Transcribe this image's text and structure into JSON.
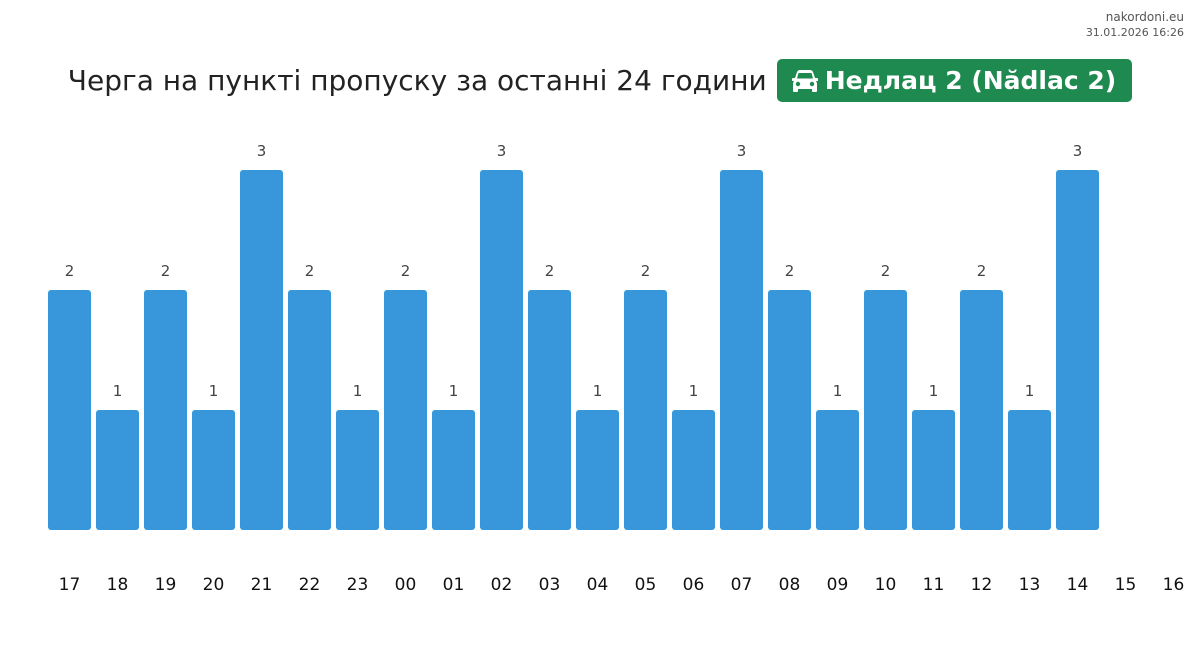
{
  "site": "nakordoni.eu",
  "timestamp": "31.01.2026 16:26",
  "header": {
    "title": "Черга на пункті пропуску за останні 24 години",
    "checkpoint": "Недлац 2 (Nădlac 2)",
    "badge_icon": "car-icon",
    "badge_color": "#1e8a50"
  },
  "chart_data": {
    "type": "bar",
    "title": "Черга на пункті пропуску за останні 24 години",
    "xlabel": "",
    "ylabel": "",
    "categories": [
      "17",
      "18",
      "19",
      "20",
      "21",
      "22",
      "23",
      "00",
      "01",
      "02",
      "03",
      "04",
      "05",
      "06",
      "07",
      "08",
      "09",
      "10",
      "11",
      "12",
      "13",
      "14",
      "15",
      "16"
    ],
    "values": [
      2,
      1,
      2,
      1,
      3,
      2,
      1,
      2,
      1,
      3,
      2,
      1,
      2,
      1,
      3,
      2,
      1,
      2,
      1,
      2,
      1,
      3,
      null,
      null
    ],
    "ylim": [
      0,
      3
    ],
    "grid": false,
    "legend": "none",
    "bar_color": "#3897db"
  }
}
